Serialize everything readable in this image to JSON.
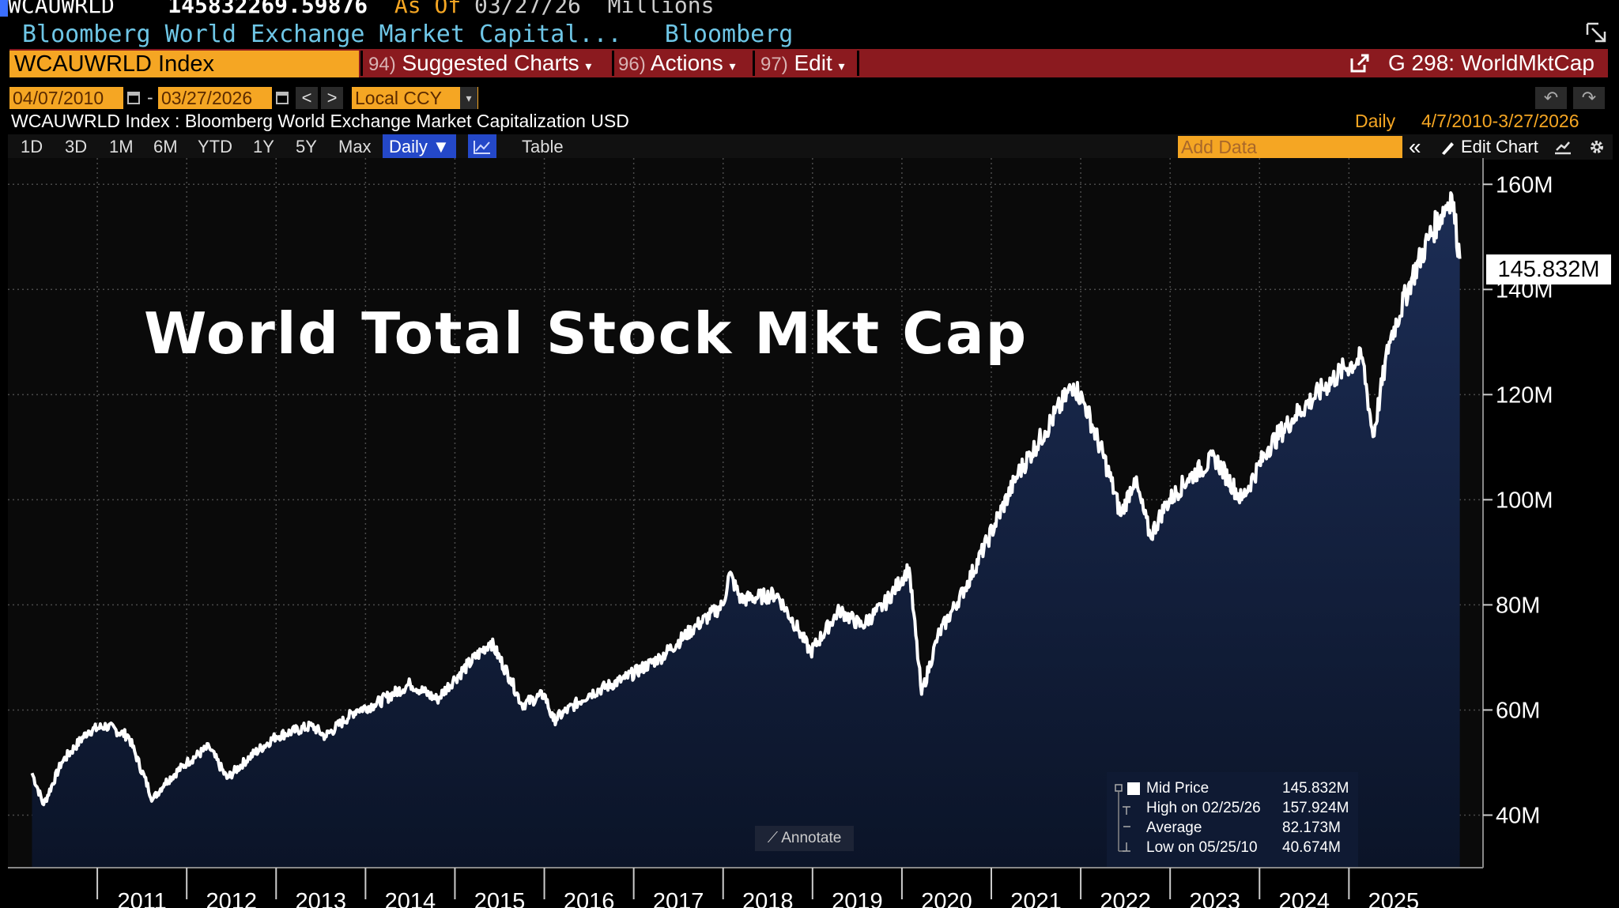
{
  "header": {
    "ticker": "WCAUWRLD",
    "last_value": "145832269.59876",
    "as_of_label": "As Of",
    "as_of_date": "03/27/26",
    "units": "Millions",
    "name": "Bloomberg World Exchange Market Capital...",
    "source": "Bloomberg"
  },
  "menubar": {
    "security": "WCAUWRLD Index",
    "items": [
      {
        "num": "94)",
        "label": "Suggested Charts"
      },
      {
        "num": "96)",
        "label": "Actions"
      },
      {
        "num": "97)",
        "label": "Edit"
      }
    ],
    "function": "G 298: WorldMktCap"
  },
  "daterow": {
    "start": "04/07/2010",
    "sep": "-",
    "end": "03/27/2026",
    "prev": "<",
    "next": ">",
    "currency": "Local CCY"
  },
  "description": {
    "text": "WCAUWRLD Index : Bloomberg World Exchange Market Capitalization USD",
    "frequency": "Daily",
    "range": "4/7/2010-3/27/2026"
  },
  "toolbar": {
    "periods": [
      "1D",
      "3D",
      "1M",
      "6M",
      "YTD",
      "1Y",
      "5Y",
      "Max"
    ],
    "frequency": "Daily ▼",
    "table": "Table",
    "add_data": "Add Data",
    "collapse": "«",
    "edit_chart": "Edit Chart"
  },
  "chart_data": {
    "type": "area",
    "title": "World Total Stock Mkt Cap",
    "ylabel": "",
    "xlabel": "",
    "y_unit": "M",
    "ylim": [
      30,
      165
    ],
    "yticks": [
      "40M",
      "60M",
      "80M",
      "100M",
      "120M",
      "140M",
      "160M"
    ],
    "xticks": [
      "2011",
      "2012",
      "2013",
      "2014",
      "2015",
      "2016",
      "2017",
      "2018",
      "2019",
      "2020",
      "2021",
      "2022",
      "2023",
      "2024",
      "2025"
    ],
    "series": [
      {
        "values_in": "M",
        "points": [
          [
            2010.27,
            48
          ],
          [
            2010.4,
            42
          ],
          [
            2010.6,
            50
          ],
          [
            2010.9,
            56
          ],
          [
            2011.1,
            57
          ],
          [
            2011.35,
            55
          ],
          [
            2011.62,
            43
          ],
          [
            2011.75,
            46
          ],
          [
            2012.0,
            50
          ],
          [
            2012.25,
            53
          ],
          [
            2012.45,
            47
          ],
          [
            2012.7,
            51
          ],
          [
            2013.0,
            55
          ],
          [
            2013.4,
            57
          ],
          [
            2013.55,
            55
          ],
          [
            2013.9,
            60
          ],
          [
            2014.1,
            61
          ],
          [
            2014.5,
            65
          ],
          [
            2014.8,
            62
          ],
          [
            2015.0,
            66
          ],
          [
            2015.4,
            73
          ],
          [
            2015.62,
            66
          ],
          [
            2015.75,
            61
          ],
          [
            2016.0,
            63
          ],
          [
            2016.1,
            58
          ],
          [
            2016.5,
            63
          ],
          [
            2016.9,
            66
          ],
          [
            2017.3,
            70
          ],
          [
            2017.7,
            76
          ],
          [
            2018.0,
            80
          ],
          [
            2018.07,
            86
          ],
          [
            2018.2,
            81
          ],
          [
            2018.6,
            82
          ],
          [
            2018.85,
            75
          ],
          [
            2018.98,
            71
          ],
          [
            2019.3,
            79
          ],
          [
            2019.55,
            76
          ],
          [
            2019.8,
            80
          ],
          [
            2020.08,
            87
          ],
          [
            2020.22,
            63
          ],
          [
            2020.4,
            74
          ],
          [
            2020.7,
            83
          ],
          [
            2020.95,
            92
          ],
          [
            2021.3,
            105
          ],
          [
            2021.6,
            113
          ],
          [
            2021.92,
            122
          ],
          [
            2022.05,
            118
          ],
          [
            2022.3,
            106
          ],
          [
            2022.45,
            97
          ],
          [
            2022.6,
            104
          ],
          [
            2022.78,
            93
          ],
          [
            2022.95,
            99
          ],
          [
            2023.2,
            104
          ],
          [
            2023.5,
            108
          ],
          [
            2023.8,
            100
          ],
          [
            2024.1,
            110
          ],
          [
            2024.4,
            116
          ],
          [
            2024.7,
            121
          ],
          [
            2024.95,
            125
          ],
          [
            2025.15,
            127
          ],
          [
            2025.27,
            112
          ],
          [
            2025.45,
            130
          ],
          [
            2025.7,
            142
          ],
          [
            2025.9,
            150
          ],
          [
            2026.15,
            158
          ],
          [
            2026.24,
            145.832
          ]
        ]
      }
    ],
    "last_label": "145.832M",
    "legend_position": "bottom-right",
    "grid": true,
    "colors": {
      "line": "#ffffff",
      "fill_top": "#1c2d55",
      "fill_bottom": "#0b1428",
      "grid": "#4a4a4a"
    }
  },
  "legend": {
    "rows": [
      {
        "label": "Mid Price",
        "value": "145.832M"
      },
      {
        "label": "High on 02/25/26",
        "value": "157.924M"
      },
      {
        "label": "Average",
        "value": "82.173M"
      },
      {
        "label": "Low on 05/25/10",
        "value": "40.674M"
      }
    ]
  },
  "annotate_label": "Annotate",
  "colors": {
    "accent_orange": "#f5a623",
    "menu_red": "#8b1a1f",
    "selected_blue": "#2448c8",
    "header_cyan": "#6ec6e6"
  }
}
